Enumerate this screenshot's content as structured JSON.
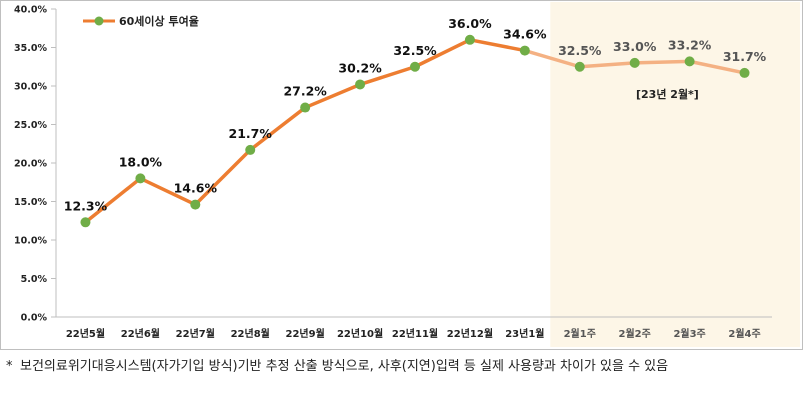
{
  "chart_data": {
    "type": "line",
    "categories": [
      "22년5월",
      "22년6월",
      "22년7월",
      "22년8월",
      "22년9월",
      "22년10월",
      "22년11월",
      "22년12월",
      "23년1월",
      "2월1주",
      "2월2주",
      "2월3주",
      "2월4주"
    ],
    "series": [
      {
        "name": "60세이상 투여율",
        "values": [
          12.3,
          18.0,
          14.6,
          21.7,
          27.2,
          30.2,
          32.5,
          36.0,
          34.6,
          32.5,
          33.0,
          33.2,
          31.7
        ],
        "labels": [
          "12.3%",
          "18.0%",
          "14.6%",
          "21.7%",
          "27.2%",
          "30.2%",
          "32.5%",
          "36.0%",
          "34.6%",
          "32.5%",
          "33.0%",
          "33.2%",
          "31.7%"
        ]
      }
    ],
    "yticks": [
      "0.0%",
      "5.0%",
      "10.0%",
      "15.0%",
      "20.0%",
      "25.0%",
      "30.0%",
      "35.0%",
      "40.0%"
    ],
    "ylim": [
      0,
      40
    ],
    "highlight_from_index": 9,
    "annotation": "[23년 2월*]",
    "legend_position": "top-left",
    "colors": {
      "line": "#ED7D31",
      "line_highlight": "#F4B183",
      "marker": "#70AD47",
      "highlight_band": "#FDF6E7"
    }
  },
  "footnote": {
    "mark": "*",
    "text": "보건의료위기대응시스템(자가기입 방식)기반 추정 산출 방식으로, 사후(지연)입력 등 실제 사용량과 차이가 있을 수 있음"
  }
}
